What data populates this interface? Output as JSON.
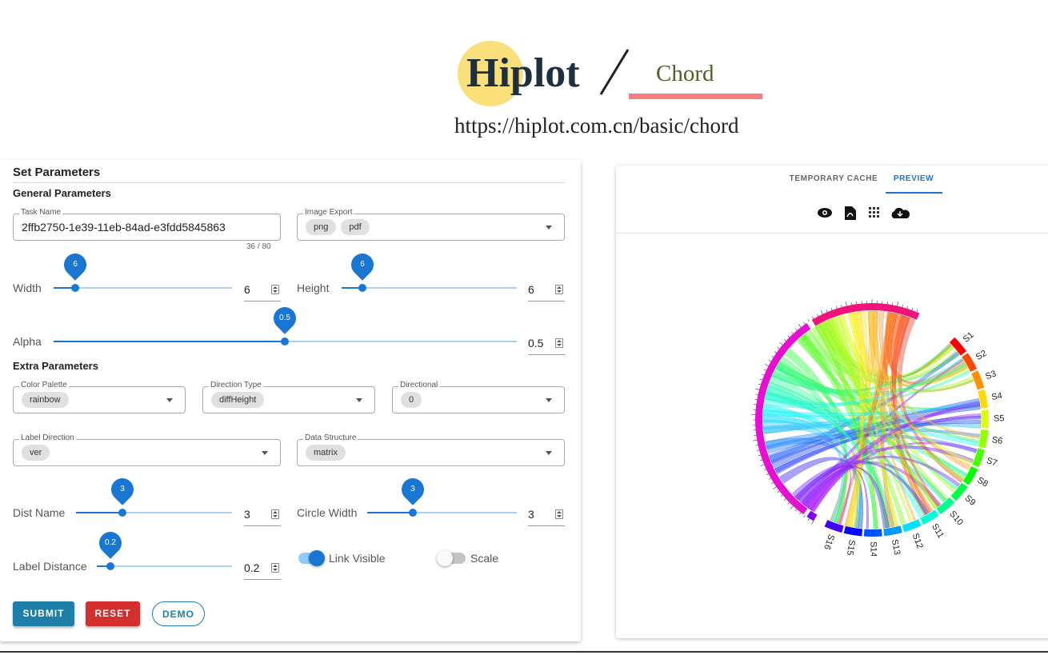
{
  "header": {
    "logo": "Hiplot",
    "page": "Chord",
    "url": "https://hiplot.com.cn/basic/chord"
  },
  "form": {
    "title": "Set Parameters",
    "general_title": "General Parameters",
    "task_name": {
      "label": "Task Name",
      "value": "2ffb2750-1e39-11eb-84ad-e3fdd5845863",
      "counter": "36 / 80"
    },
    "image_export": {
      "label": "Image Export",
      "chips": [
        "png",
        "pdf"
      ]
    },
    "width": {
      "label": "Width",
      "value": 6
    },
    "height": {
      "label": "Height",
      "value": 6
    },
    "alpha": {
      "label": "Alpha",
      "value": 0.5
    },
    "extra_title": "Extra Parameters",
    "color_palette": {
      "label": "Color Palette",
      "chips": [
        "rainbow"
      ]
    },
    "direction_type": {
      "label": "Direction Type",
      "chips": [
        "diffHeight"
      ]
    },
    "directional": {
      "label": "Directional",
      "chips": [
        "0"
      ]
    },
    "label_direction": {
      "label": "Label Direction",
      "chips": [
        "ver"
      ]
    },
    "data_structure": {
      "label": "Data Structure",
      "chips": [
        "matrix"
      ]
    },
    "dist_name": {
      "label": "Dist Name",
      "value": 3
    },
    "circle_width": {
      "label": "Circle Width",
      "value": 3
    },
    "label_distance": {
      "label": "Label Distance",
      "value": 0.2
    },
    "link_visible": {
      "label": "Link Visible",
      "on": true
    },
    "scale": {
      "label": "Scale",
      "on": false
    },
    "buttons": [
      "SUBMIT",
      "RESET",
      "DEMO"
    ]
  },
  "preview": {
    "tabs": [
      "TEMPORARY CACHE",
      "PREVIEW"
    ],
    "active_tab": 1,
    "sector_labels": [
      "S1",
      "S2",
      "S3",
      "S4",
      "S5",
      "S6",
      "S7",
      "S8",
      "S9",
      "S10",
      "S11",
      "S12",
      "S13",
      "S14",
      "S15",
      "S16"
    ]
  }
}
